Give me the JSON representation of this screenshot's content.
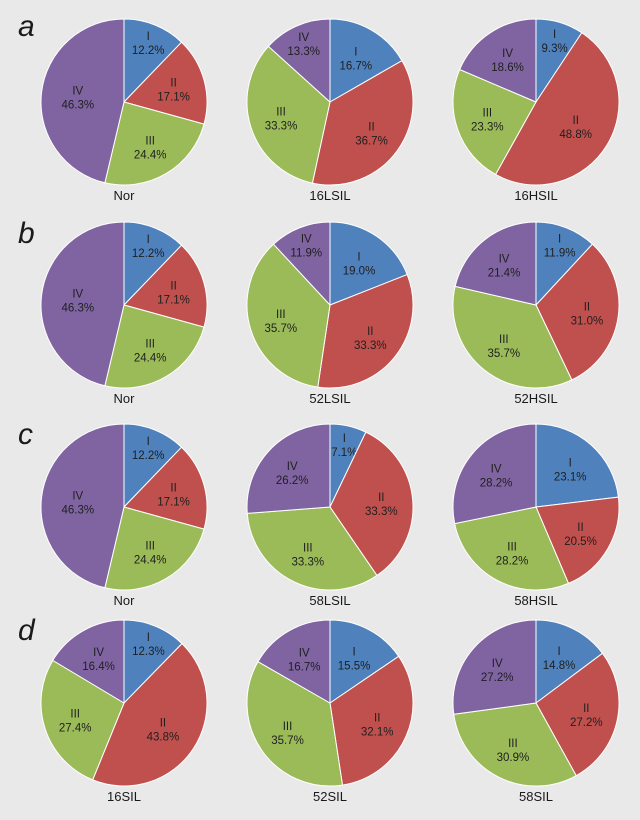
{
  "colors": {
    "I": "#4f81bd",
    "II": "#c0504d",
    "III": "#9bbb59",
    "IV": "#8064a2"
  },
  "chart_data": [
    {
      "panel": "a",
      "type": "pie",
      "label": "Nor",
      "categories": [
        "I",
        "II",
        "III",
        "IV"
      ],
      "values": [
        12.2,
        17.1,
        24.4,
        46.3
      ]
    },
    {
      "panel": "a",
      "type": "pie",
      "label": "16LSIL",
      "categories": [
        "I",
        "II",
        "III",
        "IV"
      ],
      "values": [
        16.7,
        36.7,
        33.3,
        13.3
      ]
    },
    {
      "panel": "a",
      "type": "pie",
      "label": "16HSIL",
      "categories": [
        "I",
        "II",
        "III",
        "IV"
      ],
      "values": [
        9.3,
        48.8,
        23.3,
        18.6
      ]
    },
    {
      "panel": "b",
      "type": "pie",
      "label": "Nor",
      "categories": [
        "I",
        "II",
        "III",
        "IV"
      ],
      "values": [
        12.2,
        17.1,
        24.4,
        46.3
      ]
    },
    {
      "panel": "b",
      "type": "pie",
      "label": "52LSIL",
      "categories": [
        "I",
        "II",
        "III",
        "IV"
      ],
      "values": [
        19.0,
        33.3,
        35.7,
        11.9
      ]
    },
    {
      "panel": "b",
      "type": "pie",
      "label": "52HSIL",
      "categories": [
        "I",
        "II",
        "III",
        "IV"
      ],
      "values": [
        11.9,
        31.0,
        35.7,
        21.4
      ]
    },
    {
      "panel": "c",
      "type": "pie",
      "label": "Nor",
      "categories": [
        "I",
        "II",
        "III",
        "IV"
      ],
      "values": [
        12.2,
        17.1,
        24.4,
        46.3
      ]
    },
    {
      "panel": "c",
      "type": "pie",
      "label": "58LSIL",
      "categories": [
        "I",
        "II",
        "III",
        "IV"
      ],
      "values": [
        7.1,
        33.3,
        33.3,
        26.2
      ]
    },
    {
      "panel": "c",
      "type": "pie",
      "label": "58HSIL",
      "categories": [
        "I",
        "II",
        "III",
        "IV"
      ],
      "values": [
        23.1,
        20.5,
        28.2,
        28.2
      ]
    },
    {
      "panel": "d",
      "type": "pie",
      "label": "16SIL",
      "categories": [
        "I",
        "II",
        "III",
        "IV"
      ],
      "values": [
        12.3,
        43.8,
        27.4,
        16.4
      ]
    },
    {
      "panel": "d",
      "type": "pie",
      "label": "52SIL",
      "categories": [
        "I",
        "II",
        "III",
        "IV"
      ],
      "values": [
        15.5,
        32.1,
        35.7,
        16.7
      ]
    },
    {
      "panel": "d",
      "type": "pie",
      "label": "58SIL",
      "categories": [
        "I",
        "II",
        "III",
        "IV"
      ],
      "values": [
        14.8,
        27.2,
        30.9,
        27.2
      ]
    }
  ]
}
